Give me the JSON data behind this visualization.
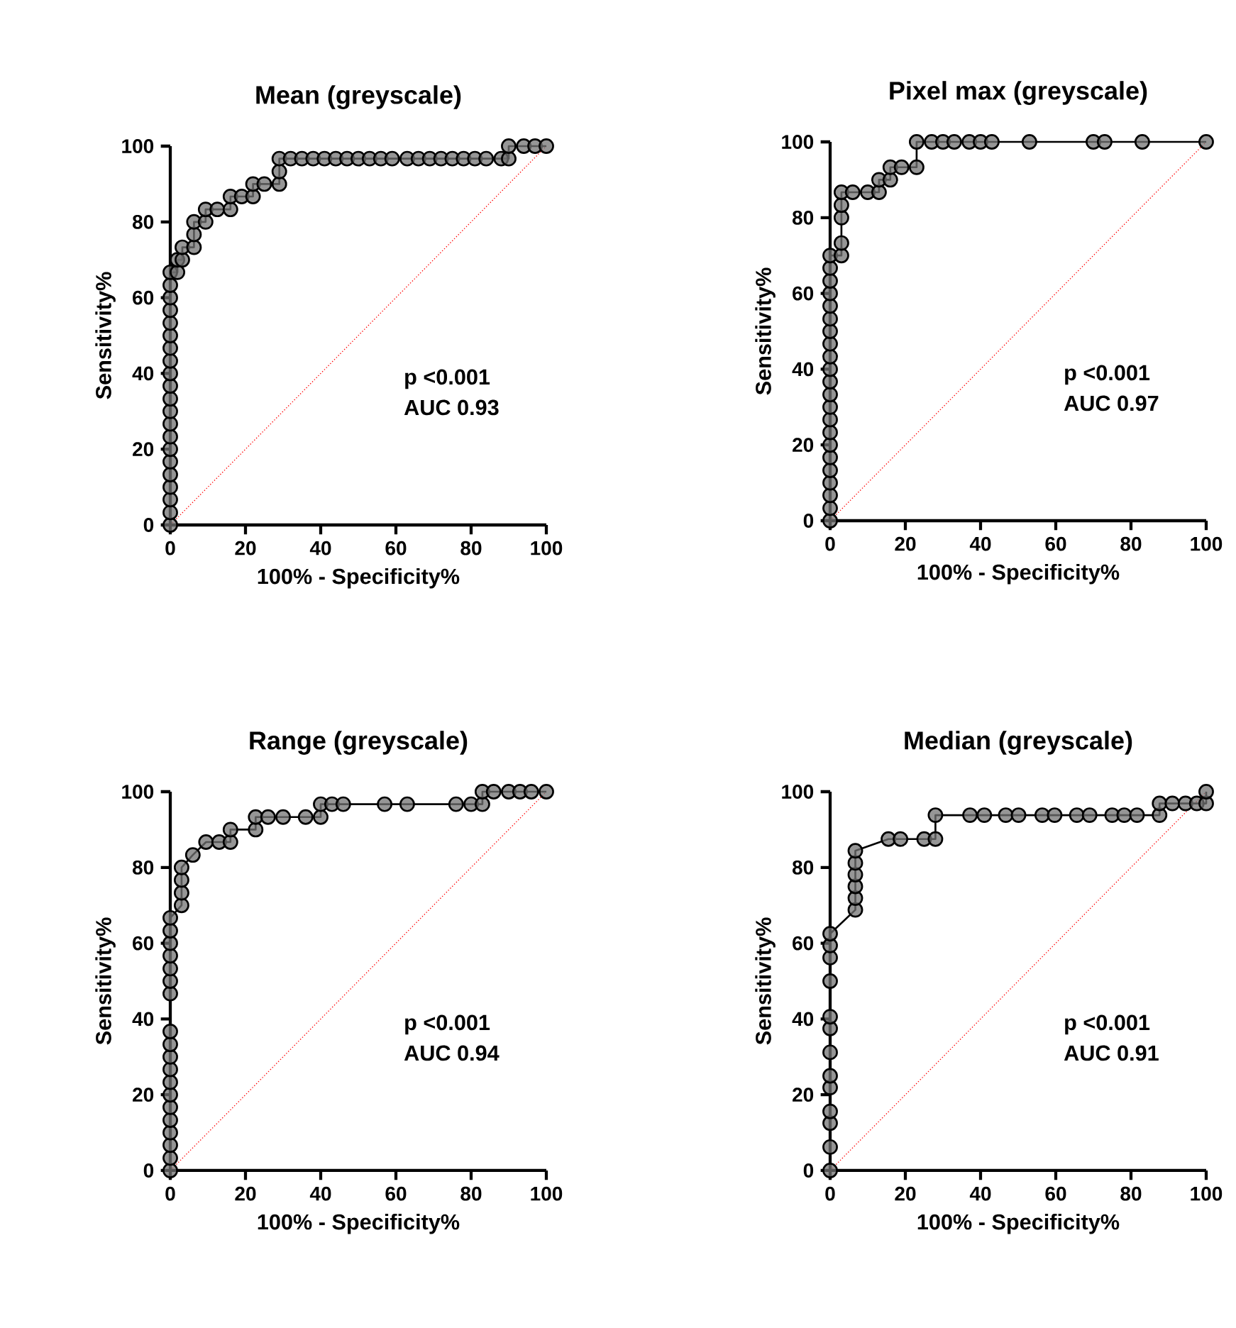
{
  "chart_data": [
    {
      "type": "line",
      "title": "Mean (greyscale)",
      "xlabel": "100% - Specificity%",
      "ylabel": "Sensitivity%",
      "xlim": [
        0,
        100
      ],
      "ylim": [
        0,
        100
      ],
      "xticks": [
        0,
        20,
        40,
        60,
        80,
        100
      ],
      "yticks": [
        0,
        20,
        40,
        60,
        80,
        100
      ],
      "annotations": [
        "p <0.001",
        "AUC 0.93"
      ],
      "series": [
        {
          "color": "#000000",
          "marker": "circle",
          "x": [
            0,
            0,
            0,
            0,
            0,
            0,
            0,
            0,
            0,
            0,
            0,
            0,
            0,
            0,
            0,
            0,
            0,
            0,
            0,
            0,
            0,
            1.9,
            1.9,
            3.2,
            3.2,
            6.3,
            6.3,
            6.3,
            9.4,
            9.4,
            12.5,
            16,
            16,
            19,
            22,
            22,
            25,
            29,
            29,
            29,
            32,
            35,
            38,
            41,
            44,
            47,
            50,
            53,
            56,
            59,
            63,
            66,
            69,
            72,
            75,
            78,
            81,
            84,
            88,
            90,
            90,
            94,
            97,
            100
          ],
          "values": [
            0,
            3.3,
            6.7,
            10,
            13.3,
            16.7,
            20,
            23.3,
            26.7,
            30,
            33.3,
            36.7,
            40,
            43.3,
            46.7,
            50,
            53.3,
            56.7,
            60,
            63.3,
            66.7,
            66.7,
            70,
            70,
            73.3,
            73.3,
            76.7,
            80,
            80,
            83.3,
            83.3,
            83.3,
            86.7,
            86.7,
            86.7,
            90,
            90,
            90,
            93.3,
            96.7,
            96.7,
            96.7,
            96.7,
            96.7,
            96.7,
            96.7,
            96.7,
            96.7,
            96.7,
            96.7,
            96.7,
            96.7,
            96.7,
            96.7,
            96.7,
            96.7,
            96.7,
            96.7,
            96.7,
            96.7,
            100,
            100,
            100,
            100
          ]
        },
        {
          "color": "#ff0000",
          "marker": "none",
          "line_style": "dotted",
          "x": [
            0,
            100
          ],
          "values": [
            0,
            100
          ]
        }
      ]
    },
    {
      "type": "line",
      "title": "Pixel max (greyscale)",
      "xlabel": "100% - Specificity%",
      "ylabel": "Sensitivity%",
      "xlim": [
        0,
        100
      ],
      "ylim": [
        0,
        100
      ],
      "xticks": [
        0,
        20,
        40,
        60,
        80,
        100
      ],
      "yticks": [
        0,
        20,
        40,
        60,
        80,
        100
      ],
      "annotations": [
        "p <0.001",
        "AUC 0.97"
      ],
      "series": [
        {
          "color": "#000000",
          "marker": "circle",
          "x": [
            0,
            0,
            0,
            0,
            0,
            0,
            0,
            0,
            0,
            0,
            0,
            0,
            0,
            0,
            0,
            0,
            0,
            0,
            0,
            0,
            0,
            0,
            3,
            3,
            3,
            3,
            3,
            6,
            10,
            13,
            13,
            16,
            16,
            19,
            23,
            23,
            27,
            30,
            33,
            37,
            40,
            43,
            53,
            70,
            73,
            83,
            100
          ],
          "values": [
            0,
            3.3,
            6.7,
            10,
            13.3,
            16.7,
            20,
            23.3,
            26.7,
            30,
            33.3,
            36.7,
            40,
            43.3,
            46.7,
            50,
            53.3,
            56.7,
            60,
            63.3,
            66.7,
            70,
            70,
            73.3,
            80,
            83.3,
            86.7,
            86.7,
            86.7,
            86.7,
            90,
            90,
            93.3,
            93.3,
            93.3,
            100,
            100,
            100,
            100,
            100,
            100,
            100,
            100,
            100,
            100,
            100,
            100
          ]
        },
        {
          "color": "#ff0000",
          "marker": "none",
          "line_style": "dotted",
          "x": [
            0,
            100
          ],
          "values": [
            0,
            100
          ]
        }
      ]
    },
    {
      "type": "line",
      "title": "Range (greyscale)",
      "xlabel": "100% - Specificity%",
      "ylabel": "Sensitivity%",
      "xlim": [
        0,
        100
      ],
      "ylim": [
        0,
        100
      ],
      "xticks": [
        0,
        20,
        40,
        60,
        80,
        100
      ],
      "yticks": [
        0,
        20,
        40,
        60,
        80,
        100
      ],
      "annotations": [
        "p <0.001",
        "AUC 0.94"
      ],
      "series": [
        {
          "color": "#000000",
          "marker": "circle",
          "x": [
            0,
            0,
            0,
            0,
            0,
            0,
            0,
            0,
            0,
            0,
            0,
            0,
            0,
            0,
            0,
            0,
            0,
            0,
            0,
            3,
            3,
            3,
            3,
            6,
            9.5,
            13,
            16,
            16,
            22.7,
            22.7,
            26,
            30,
            36,
            40,
            40,
            43,
            46,
            57,
            63,
            76,
            80,
            83,
            83,
            86,
            90,
            93,
            96,
            100
          ],
          "values": [
            0,
            3.3,
            6.7,
            10,
            13.3,
            16.7,
            20,
            23.3,
            26.7,
            30,
            33.3,
            36.7,
            46.7,
            50,
            53.3,
            56.7,
            60,
            63.3,
            66.7,
            70,
            73.3,
            76.7,
            80,
            83.3,
            86.7,
            86.7,
            86.7,
            90,
            90,
            93.3,
            93.3,
            93.3,
            93.3,
            93.3,
            96.7,
            96.7,
            96.7,
            96.7,
            96.7,
            96.7,
            96.7,
            96.7,
            100,
            100,
            100,
            100,
            100,
            100
          ]
        },
        {
          "color": "#ff0000",
          "marker": "none",
          "line_style": "dotted",
          "x": [
            0,
            100
          ],
          "values": [
            0,
            100
          ]
        }
      ]
    },
    {
      "type": "line",
      "title": "Median (greyscale)",
      "xlabel": "100% - Specificity%",
      "ylabel": "Sensitivity%",
      "xlim": [
        0,
        100
      ],
      "ylim": [
        0,
        100
      ],
      "xticks": [
        0,
        20,
        40,
        60,
        80,
        100
      ],
      "yticks": [
        0,
        20,
        40,
        60,
        80,
        100
      ],
      "annotations": [
        "p <0.001",
        "AUC 0.91"
      ],
      "series": [
        {
          "color": "#000000",
          "marker": "circle",
          "x": [
            0,
            0,
            0,
            0,
            0,
            0,
            0,
            0,
            0,
            0,
            0,
            0,
            0,
            6.7,
            6.7,
            6.7,
            6.7,
            6.7,
            6.7,
            15.5,
            18.7,
            25,
            28,
            28,
            37.2,
            41,
            46.7,
            50.1,
            56.4,
            59.7,
            65.6,
            69,
            75,
            78.2,
            81.6,
            87.6,
            87.6,
            91,
            94.5,
            97.5,
            100,
            100
          ],
          "values": [
            0,
            6.2,
            12.5,
            15.6,
            21.9,
            25,
            31.2,
            37.5,
            40.6,
            50,
            56.2,
            59.4,
            62.5,
            68.8,
            71.9,
            75,
            78.1,
            81.2,
            84.4,
            87.5,
            87.5,
            87.5,
            87.5,
            93.8,
            93.8,
            93.8,
            93.8,
            93.8,
            93.8,
            93.8,
            93.8,
            93.8,
            93.8,
            93.8,
            93.8,
            93.8,
            96.9,
            96.9,
            96.9,
            96.9,
            96.9,
            100
          ]
        },
        {
          "color": "#ff0000",
          "marker": "none",
          "line_style": "dotted",
          "x": [
            0,
            100
          ],
          "values": [
            0,
            100
          ]
        }
      ]
    }
  ]
}
